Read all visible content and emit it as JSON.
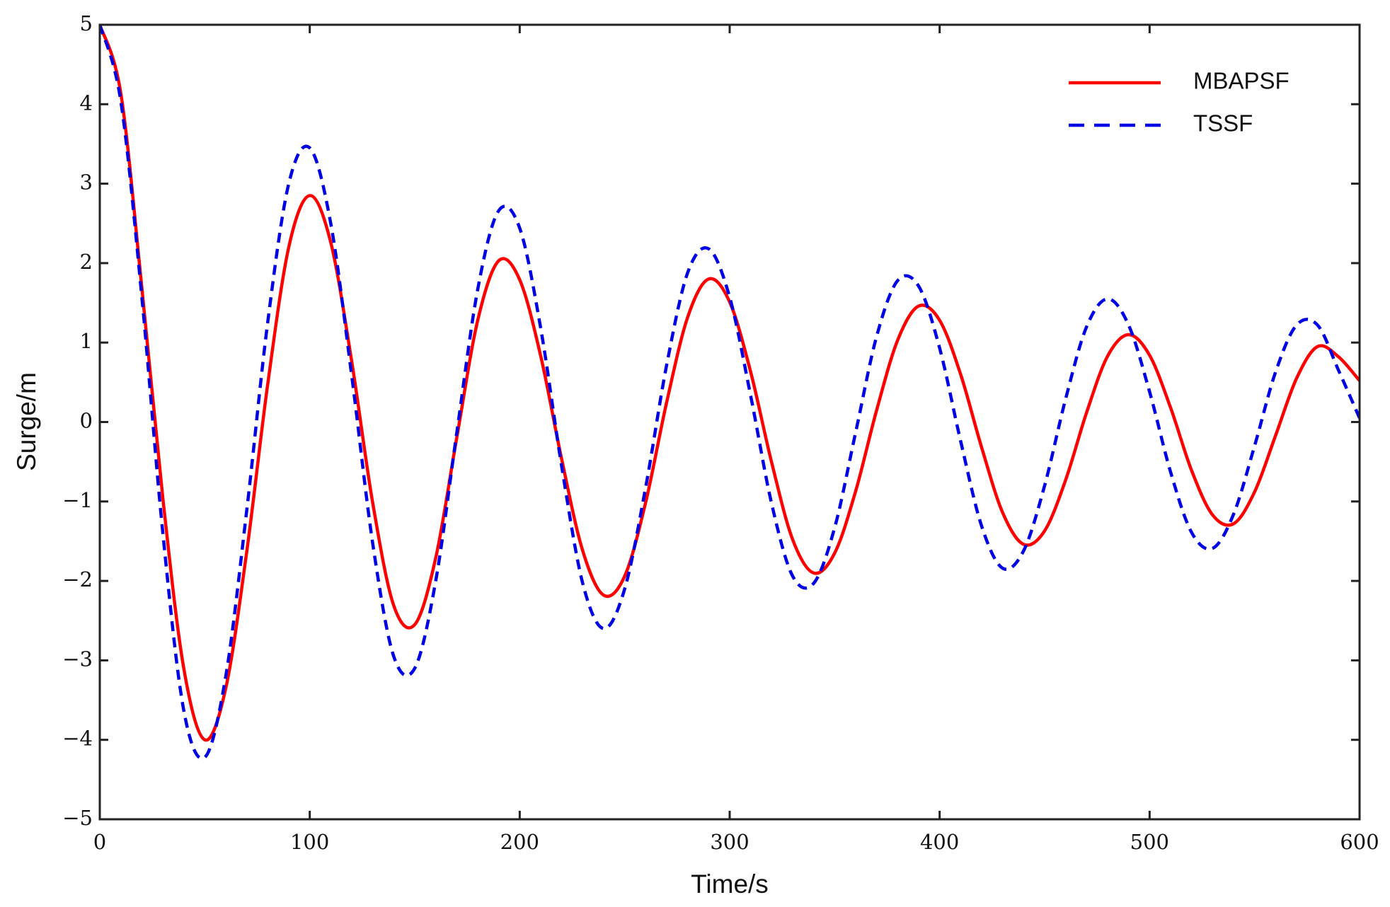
{
  "chart_data": {
    "type": "line",
    "xlabel": "Time/s",
    "ylabel": "Surge/m",
    "x": [
      0,
      10,
      20,
      30,
      40,
      50,
      60,
      70,
      80,
      90,
      100,
      110,
      120,
      130,
      140,
      150,
      160,
      170,
      180,
      190,
      200,
      210,
      220,
      230,
      240,
      250,
      260,
      270,
      280,
      290,
      300,
      310,
      320,
      330,
      340,
      350,
      360,
      370,
      380,
      390,
      400,
      410,
      420,
      430,
      440,
      450,
      460,
      470,
      480,
      490,
      500,
      510,
      520,
      530,
      540,
      550,
      560,
      570,
      580,
      590,
      600
    ],
    "series": [
      {
        "name": "MBAPSF",
        "color": "#ff0000",
        "dash": false,
        "values": [
          5,
          4.14,
          1.7,
          -0.95,
          -3.1,
          -4.0,
          -3.35,
          -1.63,
          0.48,
          2.2,
          2.85,
          2.26,
          0.76,
          -1.02,
          -2.31,
          -2.55,
          -1.71,
          -0.2,
          1.28,
          2.03,
          1.79,
          0.83,
          -0.47,
          -1.62,
          -2.18,
          -1.94,
          -1.01,
          0.25,
          1.32,
          1.8,
          1.51,
          0.63,
          -0.51,
          -1.48,
          -1.9,
          -1.65,
          -0.87,
          0.15,
          1.03,
          1.46,
          1.28,
          0.6,
          -0.32,
          -1.14,
          -1.54,
          -1.37,
          -0.73,
          0.12,
          0.83,
          1.1,
          0.84,
          0.18,
          -0.61,
          -1.17,
          -1.28,
          -0.88,
          -0.17,
          0.55,
          0.95,
          0.82,
          0.52
        ]
      },
      {
        "name": "TSSF",
        "color": "#0000e6",
        "dash": true,
        "values": [
          5,
          4.04,
          1.58,
          -1.39,
          -3.63,
          -4.22,
          -3.2,
          -1.11,
          1.26,
          3.0,
          3.45,
          2.5,
          0.58,
          -1.53,
          -2.95,
          -3.1,
          -2.0,
          -0.14,
          1.67,
          2.66,
          2.44,
          1.18,
          -0.56,
          -2.03,
          -2.6,
          -2.1,
          -0.82,
          0.72,
          1.88,
          2.18,
          1.57,
          0.33,
          -1.03,
          -1.94,
          -2.03,
          -1.33,
          -0.13,
          1.08,
          1.78,
          1.71,
          0.93,
          -0.24,
          -1.31,
          -1.84,
          -1.62,
          -0.8,
          0.29,
          1.2,
          1.55,
          1.22,
          0.38,
          -0.63,
          -1.39,
          -1.59,
          -1.16,
          -0.3,
          0.63,
          1.22,
          1.22,
          0.65,
          0.05
        ]
      }
    ],
    "xlim": [
      0,
      600
    ],
    "xticks": [
      0,
      100,
      200,
      300,
      400,
      500,
      600
    ],
    "ylim": [
      -5,
      5
    ],
    "yticks": [
      {
        "value": -5,
        "label": "−5"
      },
      {
        "value": -4,
        "label": "−4"
      },
      {
        "value": -3,
        "label": "−3"
      },
      {
        "value": -2,
        "label": "−2"
      },
      {
        "value": -1,
        "label": "−1"
      },
      0,
      1,
      2,
      3,
      4,
      5
    ],
    "legend": "upper right",
    "grid": false
  }
}
